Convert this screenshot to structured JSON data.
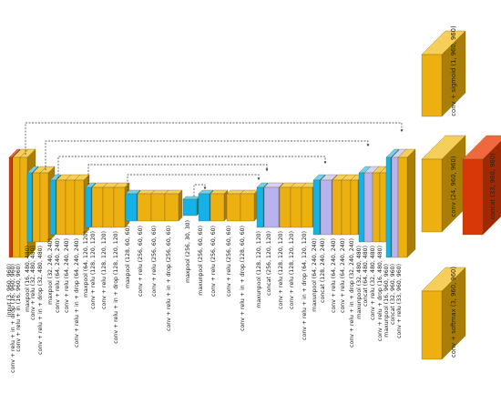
{
  "colors": {
    "conv": "#ecb010",
    "conv_side": "#a97e08",
    "conv_top": "#f6cf5a",
    "pool": "#14b2e8",
    "pool_side": "#0b7fa8",
    "pool_top": "#6fd1f2",
    "concat": "#b8b2ee",
    "concat_side": "#8a84c8",
    "concat_top": "#d6d2f6",
    "input": "#d03a1a",
    "output": "#d83808",
    "output_side": "#a02904",
    "output_top": "#f0683e",
    "connector": "#333333"
  },
  "layer_labels": [
    "input (3, 960, 960)",
    "conv + relu + in + drop (16, 960, 960)",
    "conv + relu + in (16, 960, 960)",
    "maxpool (16, 480, 480)",
    "conv + relu (32, 480, 480)",
    "conv + relu + in + drop (32, 480, 480)",
    "maxpool (32, 240, 240)",
    "conv + relu (64, 240, 240)",
    "conv + relu (64, 240, 240)",
    "conv + relu + in + drop (64, 240, 240)",
    "maxpool (64, 120, 120)",
    "conv + relu (128, 120, 120)",
    "conv + relu (128, 120, 120)",
    "conv + relu + in + drop (128, 120, 120)",
    "maxpool (128, 60, 60)",
    "conv + relu (256, 60, 60)",
    "conv + relu (256, 60, 60)",
    "conv + relu + in + drop (256, 60, 60)",
    "maxpool (256, 30, 30)",
    "maxunpool (256, 60, 60)",
    "conv + relu (256, 60, 60)",
    "conv + relu (256, 60, 60)",
    "conv + relu + in + drop (128, 60, 60)",
    "maxunpool (128, 120, 120)",
    "concat (256, 120, 120)",
    "conv + relu (128, 120, 120)",
    "conv + relu (128, 120, 120)",
    "conv + relu + in + drop (64, 120, 120)",
    "maxunpool (64, 240, 240)",
    "concat (128, 240, 240)",
    "conv + relu (64, 240, 240)",
    "conv + relu (64, 240, 240)",
    "conv + relu + in + drop (32, 240, 240)",
    "maxunpool (32, 480, 480)",
    "concat (64, 480, 480)",
    "conv + relu (32, 480, 480)",
    "conv + relu + drop (16, 480, 480)",
    "maxunpool (16, 960, 960)",
    "concat (32, 960, 960)",
    "conv + relu (33, 960, 960)"
  ],
  "side_outputs": {
    "top": "conv + sigmoid (1, 960, 960)",
    "middle": "conv (24, 960, 960)",
    "bottom": "conv + softmax (3, 960, 960)",
    "concat": "concat (33, 960, 960)"
  }
}
